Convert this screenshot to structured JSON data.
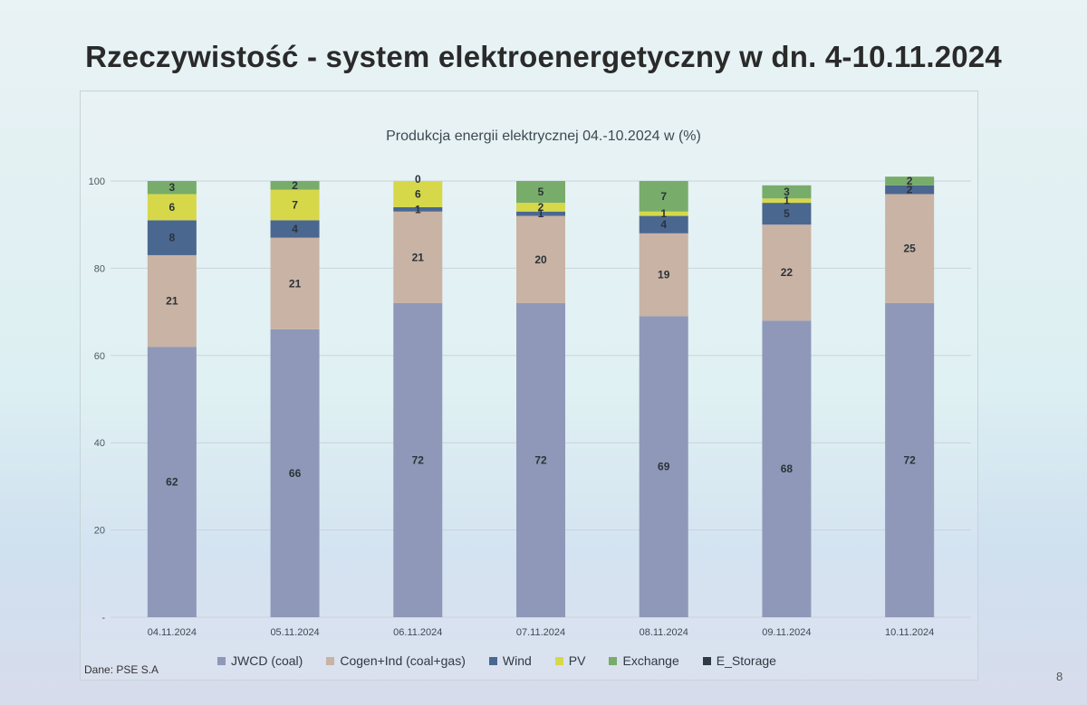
{
  "slide": {
    "title": "Rzeczywistość - system elektroenergetyczny w dn. 4-10.11.2024",
    "source": "Dane: PSE S.A",
    "page_number": "8"
  },
  "chart_data": {
    "type": "bar",
    "stacked": true,
    "title": "Produkcja energii elektrycznej 04.-10.2024 w (%)",
    "categories": [
      "04.11.2024",
      "05.11.2024",
      "06.11.2024",
      "07.11.2024",
      "08.11.2024",
      "09.11.2024",
      "10.11.2024"
    ],
    "ylim": [
      0,
      100
    ],
    "yticks": [
      0,
      20,
      40,
      60,
      80,
      100
    ],
    "grid": true,
    "legend_position": "bottom",
    "series": [
      {
        "name": "JWCD (coal)",
        "color": "#8f98b8",
        "values": [
          62,
          66,
          72,
          72,
          69,
          68,
          72
        ]
      },
      {
        "name": "Cogen+Ind (coal+gas)",
        "color": "#c9b3a5",
        "values": [
          21,
          21,
          21,
          20,
          19,
          22,
          25
        ]
      },
      {
        "name": "Wind",
        "color": "#4a6790",
        "values": [
          8,
          4,
          1,
          1,
          4,
          5,
          2
        ]
      },
      {
        "name": "PV",
        "color": "#d6d84a",
        "values": [
          6,
          7,
          6,
          2,
          1,
          1,
          0
        ]
      },
      {
        "name": "Exchange",
        "color": "#78ac6a",
        "values": [
          3,
          2,
          0,
          5,
          7,
          3,
          2
        ]
      },
      {
        "name": "E_Storage",
        "color": "#2e3a44",
        "values": [
          0,
          0,
          0,
          0,
          0,
          0,
          0
        ]
      }
    ]
  }
}
